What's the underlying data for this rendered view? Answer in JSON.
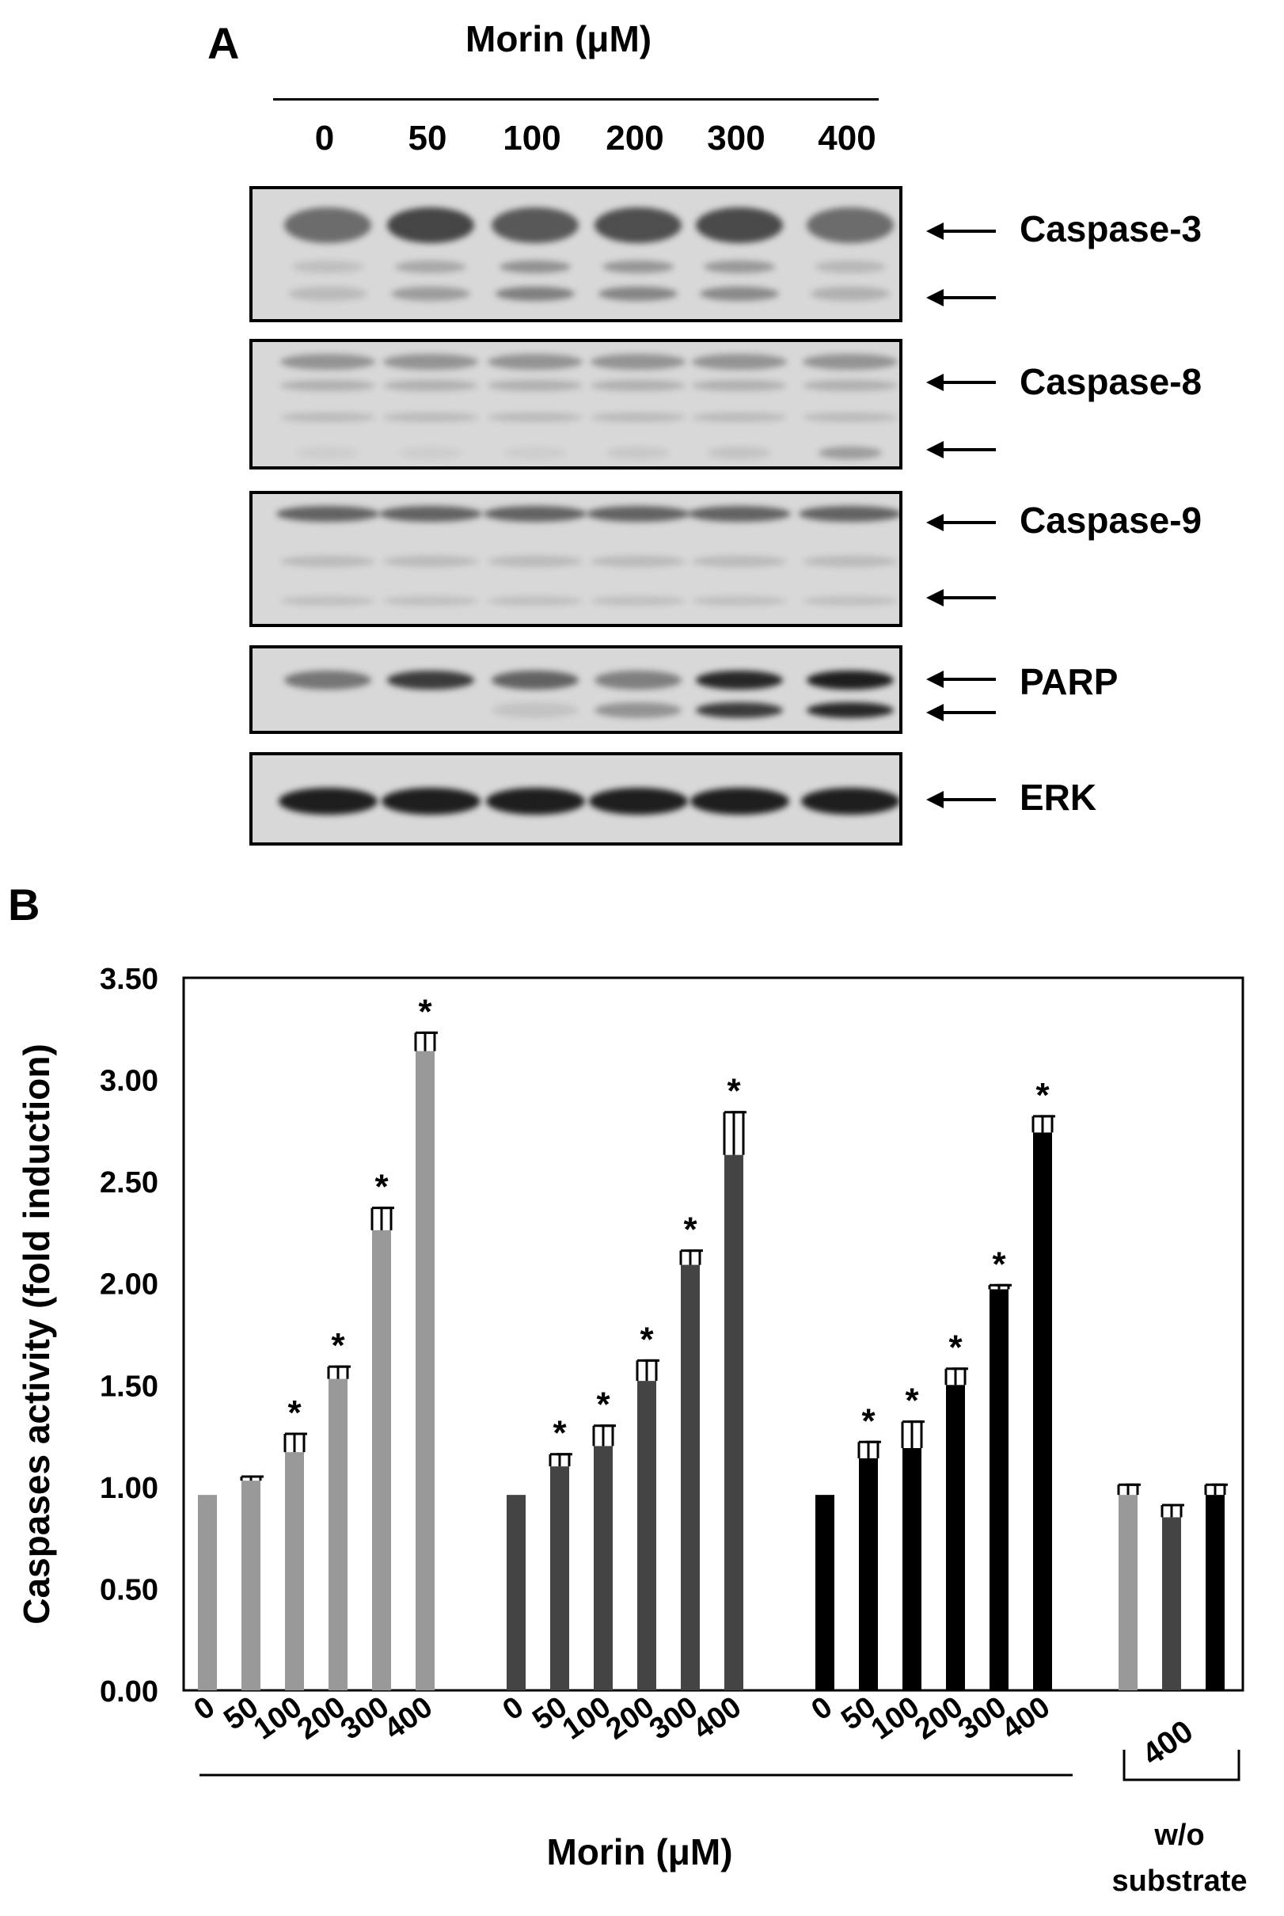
{
  "panel_a": {
    "letter": "A",
    "treatment_label": "Morin (μM)",
    "lanes": [
      "0",
      "50",
      "100",
      "200",
      "300",
      "400"
    ],
    "blots": [
      {
        "protein": "Caspase-3",
        "arrows": 2
      },
      {
        "protein": "Caspase-8",
        "arrows": 2
      },
      {
        "protein": "Caspase-9",
        "arrows": 2
      },
      {
        "protein": "PARP",
        "arrows": 2
      },
      {
        "protein": "ERK",
        "arrows": 1
      }
    ],
    "band_intensity": {
      "caspase3_top": [
        0.55,
        0.75,
        0.65,
        0.7,
        0.72,
        0.55
      ],
      "caspase3_cleaved": [
        0.15,
        0.3,
        0.45,
        0.42,
        0.4,
        0.2
      ],
      "caspase8_cleaved": [
        0.05,
        0.05,
        0.05,
        0.08,
        0.1,
        0.3
      ],
      "parp_full": [
        0.5,
        0.8,
        0.6,
        0.45,
        0.9,
        0.95
      ],
      "parp_cleaved": [
        0.0,
        0.0,
        0.1,
        0.35,
        0.8,
        0.9
      ],
      "erk": [
        0.95,
        0.95,
        0.95,
        0.95,
        0.95,
        0.95
      ]
    }
  },
  "panel_b": {
    "letter": "B",
    "xlabel": "Morin (μM)",
    "bracket_label": "400",
    "substrate_label_line1": "w/o",
    "substrate_label_line2": "substrate"
  },
  "chart_data": {
    "type": "bar",
    "ylabel": "Caspases activity (fold induction)",
    "xlabel": "Morin (μM)",
    "ylim": [
      0,
      3.5
    ],
    "yticks": [
      "0.00",
      "0.50",
      "1.00",
      "1.50",
      "2.00",
      "2.50",
      "3.00",
      "3.50"
    ],
    "groups": [
      {
        "color": "#999999",
        "categories": [
          "0",
          "50",
          "100",
          "200",
          "300",
          "400"
        ],
        "values": [
          0.96,
          1.03,
          1.17,
          1.53,
          2.26,
          3.14
        ],
        "errors": [
          0.0,
          0.02,
          0.09,
          0.06,
          0.11,
          0.09
        ],
        "significant": [
          false,
          false,
          true,
          true,
          true,
          true
        ]
      },
      {
        "color": "#444444",
        "categories": [
          "0",
          "50",
          "100",
          "200",
          "300",
          "400"
        ],
        "values": [
          0.96,
          1.1,
          1.2,
          1.52,
          2.09,
          2.63
        ],
        "errors": [
          0.0,
          0.06,
          0.1,
          0.1,
          0.07,
          0.21
        ],
        "significant": [
          false,
          true,
          true,
          true,
          true,
          true
        ]
      },
      {
        "color": "#000000",
        "categories": [
          "0",
          "50",
          "100",
          "200",
          "300",
          "400"
        ],
        "values": [
          0.96,
          1.14,
          1.19,
          1.5,
          1.97,
          2.74
        ],
        "errors": [
          0.0,
          0.08,
          0.13,
          0.08,
          0.02,
          0.08
        ],
        "significant": [
          false,
          true,
          true,
          true,
          true,
          true
        ]
      },
      {
        "colors": [
          "#999999",
          "#444444",
          "#000000"
        ],
        "categories": [
          "400"
        ],
        "values": [
          0.96,
          0.85,
          0.96
        ],
        "errors": [
          0.05,
          0.06,
          0.05
        ],
        "significant": [
          false,
          false,
          false
        ]
      }
    ],
    "significance_marker": "*"
  }
}
